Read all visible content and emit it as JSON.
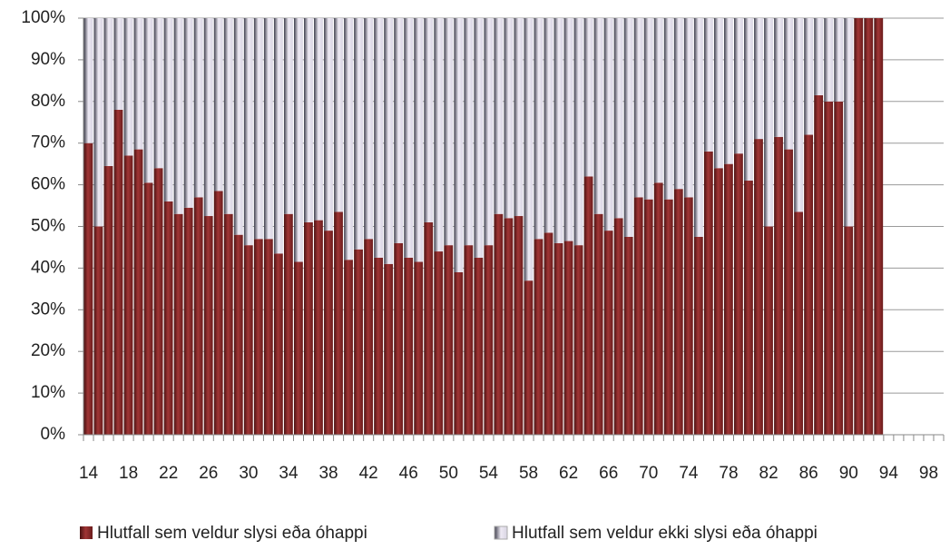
{
  "chart_data": {
    "type": "stacked_bar",
    "categories": [
      14,
      null,
      null,
      null,
      18,
      null,
      null,
      null,
      22,
      null,
      null,
      null,
      26,
      null,
      null,
      null,
      30,
      null,
      null,
      null,
      34,
      null,
      null,
      null,
      38,
      null,
      null,
      null,
      42,
      null,
      null,
      null,
      46,
      null,
      null,
      null,
      50,
      null,
      null,
      null,
      54,
      null,
      null,
      null,
      58,
      null,
      null,
      null,
      62,
      null,
      null,
      null,
      66,
      null,
      null,
      null,
      70,
      null,
      null,
      null,
      74,
      null,
      null,
      null,
      78,
      null,
      null,
      null,
      82,
      null,
      null,
      null,
      86,
      null,
      null,
      null,
      90,
      null,
      null,
      null,
      94,
      null,
      null,
      null,
      98,
      null
    ],
    "series": [
      {
        "name": "Hlutfall sem veldur slysi eða óhappi",
        "color": "#8b2a2a",
        "values": [
          70,
          50,
          64.5,
          78,
          67,
          68.5,
          60.5,
          64,
          56,
          53,
          54.5,
          57,
          52.5,
          58.5,
          53,
          48,
          45.5,
          47,
          47,
          43.5,
          53,
          41.5,
          51,
          51.5,
          49,
          53.5,
          42,
          44.5,
          47,
          42.5,
          41,
          46,
          42.5,
          41.5,
          51,
          44,
          45.5,
          39,
          45.5,
          42.5,
          45.5,
          53,
          52,
          52.5,
          37,
          47,
          48.5,
          46,
          46.5,
          45.5,
          62,
          53,
          49,
          52,
          47.5,
          57,
          56.5,
          60.5,
          56.5,
          59,
          57,
          47.5,
          68,
          64,
          65,
          67.5,
          61,
          71,
          50,
          71.5,
          68.5,
          53.5,
          72,
          81.5,
          80,
          80,
          50,
          100,
          100,
          100,
          null,
          null,
          null,
          null,
          null,
          null
        ]
      },
      {
        "name": "Hlutfall sem veldur ekki slysi eða óhappi",
        "color": "#e4e0ec",
        "values": [
          30,
          50,
          35.5,
          22,
          33,
          31.5,
          39.5,
          36,
          44,
          47,
          45.5,
          43,
          47.5,
          41.5,
          47,
          52,
          54.5,
          53,
          53,
          56.5,
          47,
          58.5,
          49,
          48.5,
          51,
          46.5,
          58,
          55.5,
          53,
          57.5,
          59,
          54,
          57.5,
          58.5,
          49,
          56,
          54.5,
          61,
          54.5,
          57.5,
          54.5,
          47,
          48,
          47.5,
          63,
          53,
          51.5,
          54,
          53.5,
          54.5,
          38,
          47,
          51,
          48,
          52.5,
          43,
          43.5,
          39.5,
          43.5,
          41,
          43,
          52.5,
          32,
          36,
          35,
          32.5,
          39,
          29,
          50,
          28.5,
          31.5,
          46.5,
          28,
          18.5,
          20,
          20,
          50,
          0,
          0,
          0,
          null,
          null,
          null,
          null,
          null,
          null
        ]
      }
    ],
    "ylim": [
      0,
      100
    ],
    "yticks": [
      {
        "value": 0,
        "label": "0%"
      },
      {
        "value": 10,
        "label": "10%"
      },
      {
        "value": 20,
        "label": "20%"
      },
      {
        "value": 30,
        "label": "30%"
      },
      {
        "value": 40,
        "label": "40%"
      },
      {
        "value": 50,
        "label": "50%"
      },
      {
        "value": 60,
        "label": "60%"
      },
      {
        "value": 70,
        "label": "70%"
      },
      {
        "value": 80,
        "label": "80%"
      },
      {
        "value": 90,
        "label": "90%"
      },
      {
        "value": 100,
        "label": "100%"
      }
    ],
    "grid": true,
    "legend": "bottom"
  }
}
